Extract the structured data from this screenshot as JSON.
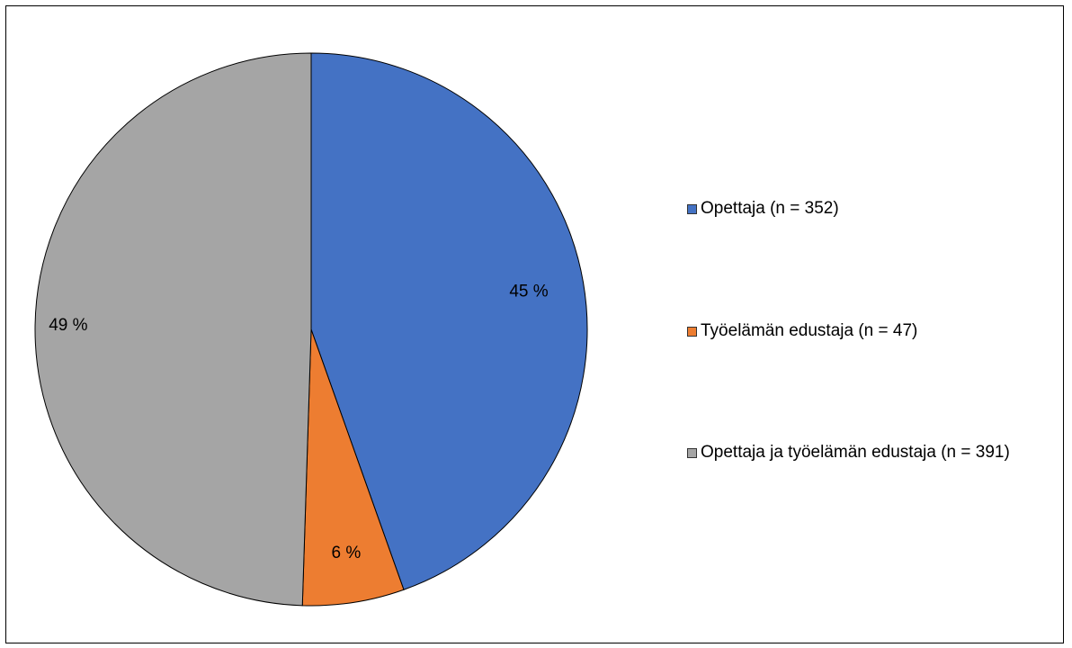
{
  "chart_data": {
    "type": "pie",
    "title": "",
    "slices": [
      {
        "label": "Opettaja (n = 352)",
        "count": 352,
        "value": 45,
        "data_label": "45 %",
        "color": "#4472C4"
      },
      {
        "label": "Työelämän edustaja (n = 47)",
        "count": 47,
        "value": 6,
        "data_label": "6 %",
        "color": "#ED7D31"
      },
      {
        "label": "Opettaja ja työelämän edustaja (n = 391)",
        "count": 391,
        "value": 49,
        "data_label": "49 %",
        "color": "#A5A5A5"
      }
    ],
    "start_angle": "12 o'clock",
    "direction": "clockwise",
    "legend": {
      "position": "right",
      "items": [
        "Opettaja (n = 352)",
        "Työelämän edustaja (n = 47)",
        "Opettaja ja työelämän edustaja (n = 391)"
      ]
    }
  }
}
